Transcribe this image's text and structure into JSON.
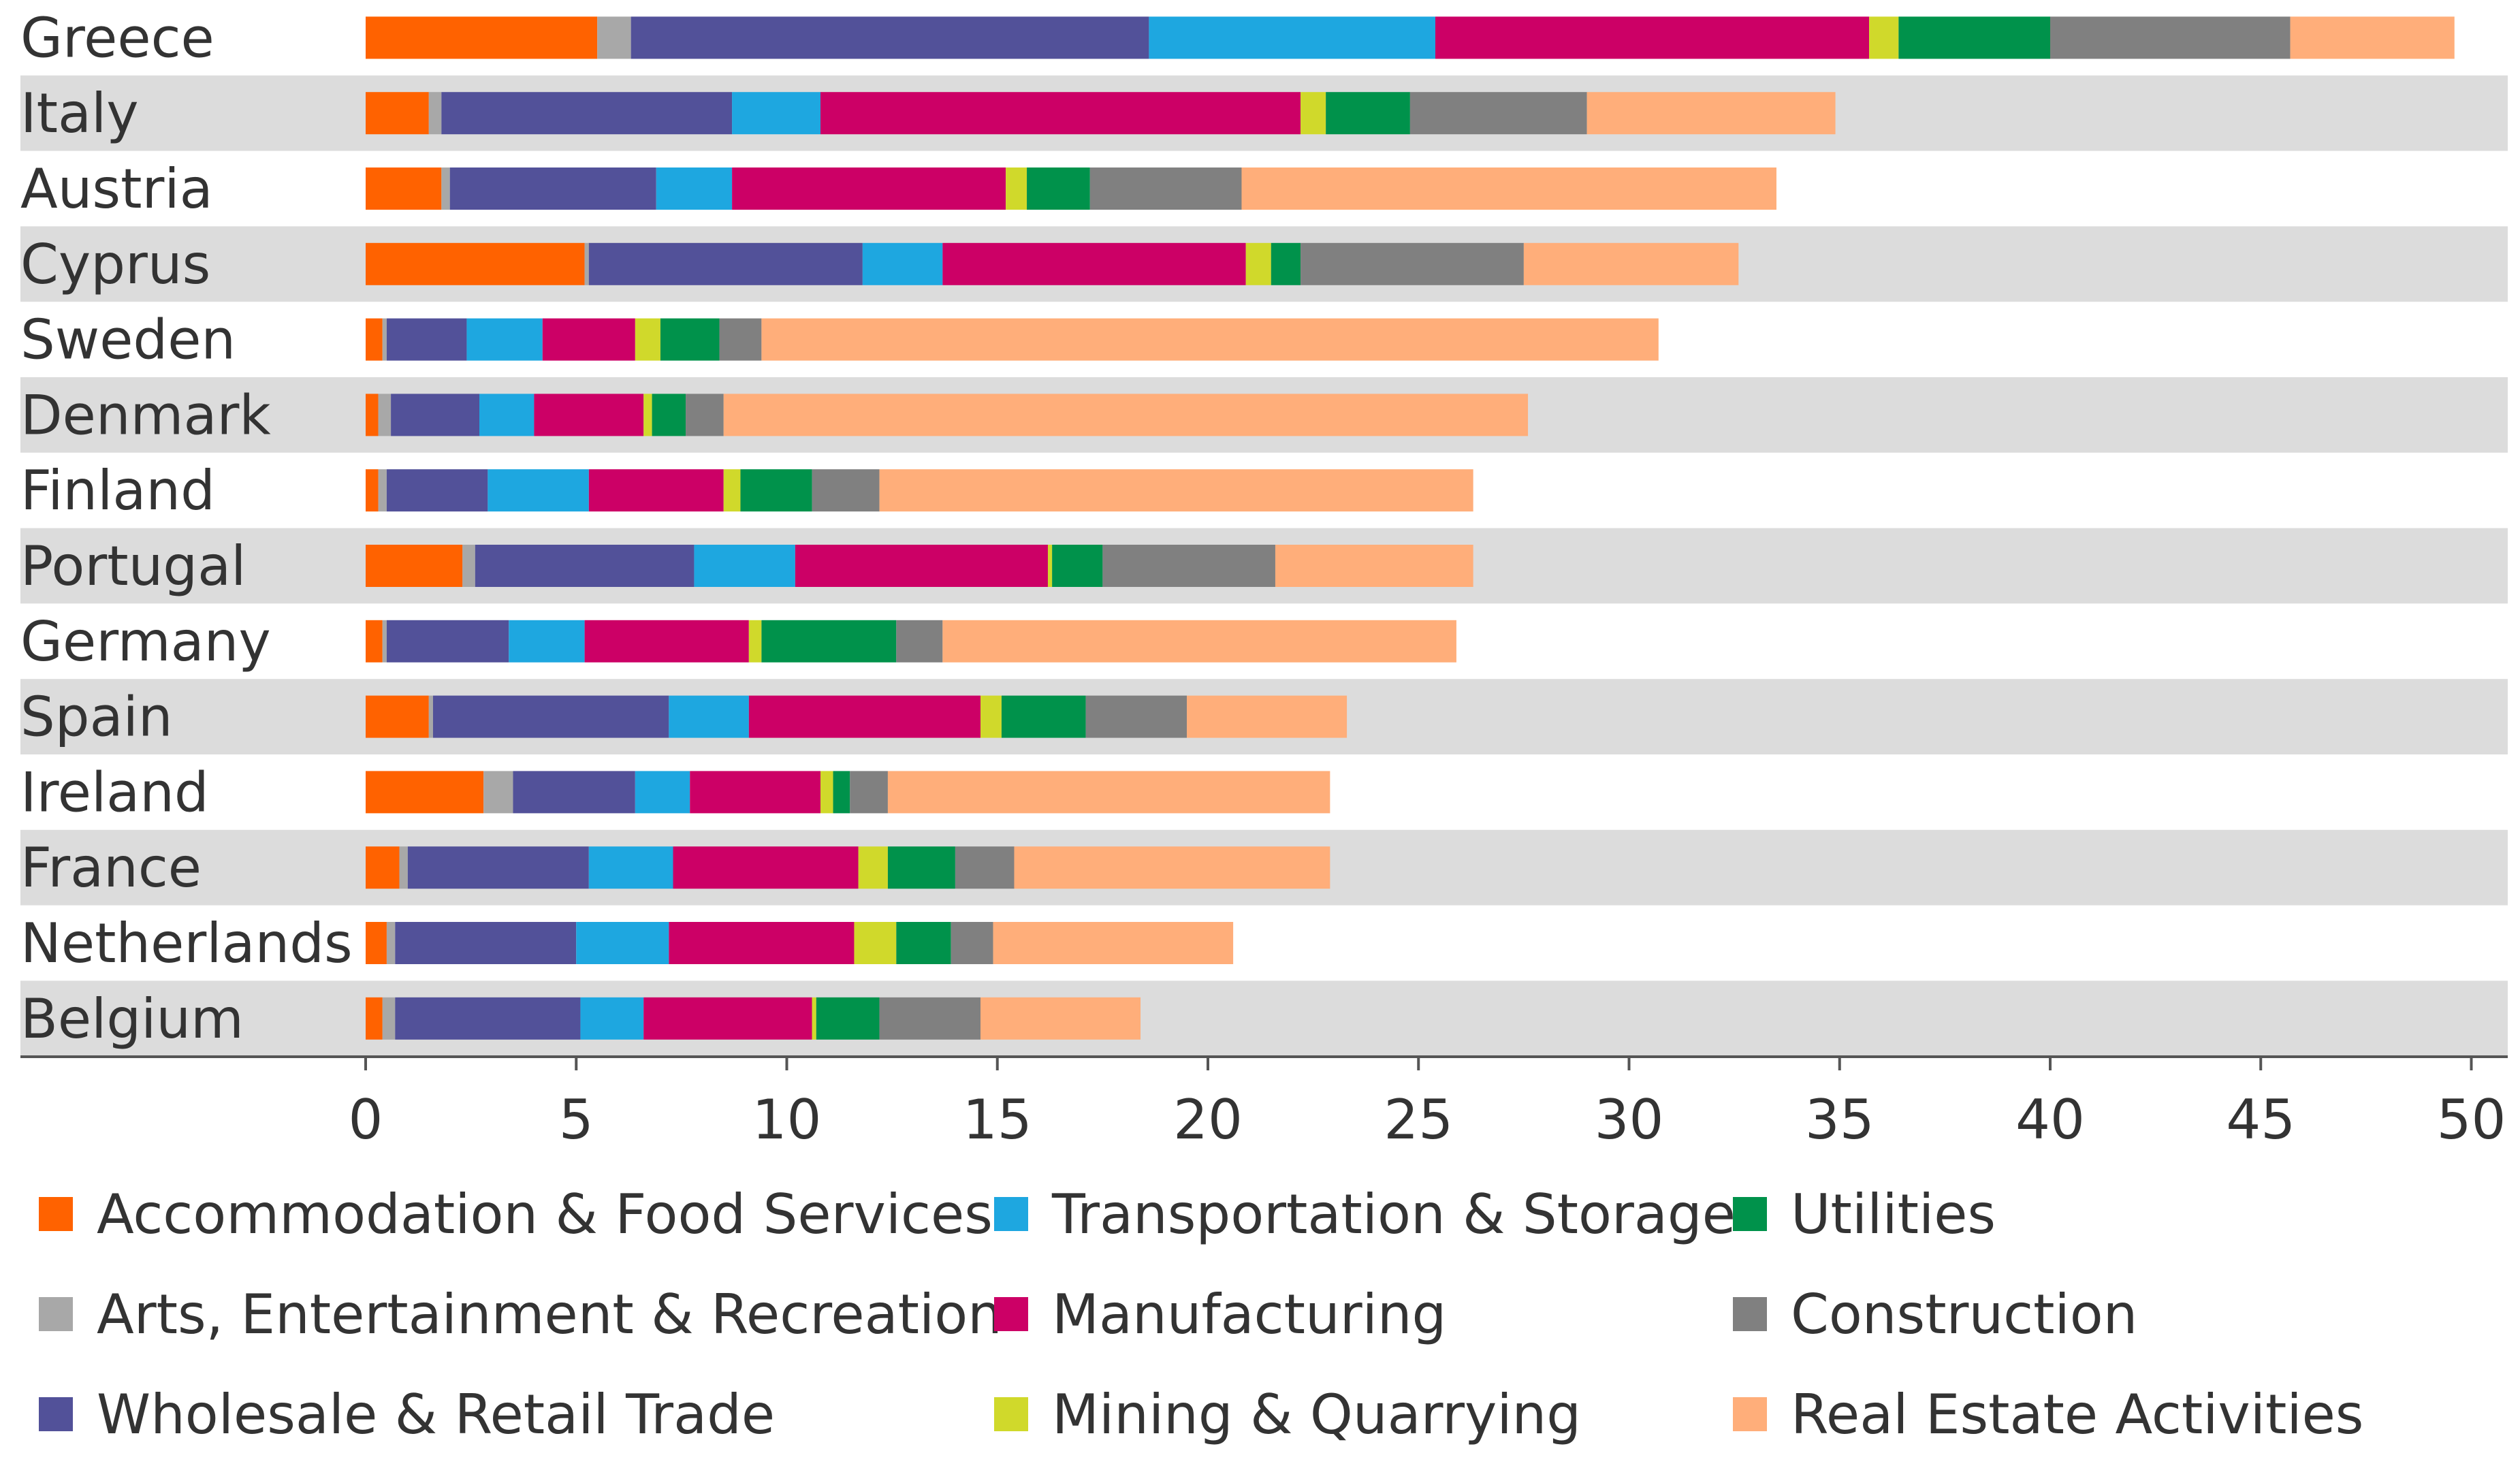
{
  "chart_data": {
    "type": "bar",
    "orientation": "horizontal",
    "stacked": true,
    "title": "",
    "xlabel": "",
    "ylabel": "",
    "xlim": [
      0,
      50
    ],
    "xticks": [
      0,
      5,
      10,
      15,
      20,
      25,
      30,
      35,
      40,
      45,
      50
    ],
    "grid": false,
    "legend_position": "bottom",
    "categories": [
      "Greece",
      "Italy",
      "Austria",
      "Cyprus",
      "Sweden",
      "Denmark",
      "Finland",
      "Portugal",
      "Germany",
      "Spain",
      "Ireland",
      "France",
      "Netherlands",
      "Belgium"
    ],
    "series": [
      {
        "name": "Accommodation & Food Services",
        "color": "#ff6200",
        "values": [
          5.5,
          1.5,
          1.8,
          5.2,
          0.4,
          0.3,
          0.3,
          2.3,
          0.4,
          1.5,
          2.8,
          0.8,
          0.5,
          0.4
        ]
      },
      {
        "name": "Arts, Entertainment & Recreation",
        "color": "#a8a8a8",
        "values": [
          0.8,
          0.3,
          0.2,
          0.1,
          0.1,
          0.3,
          0.2,
          0.3,
          0.1,
          0.1,
          0.7,
          0.2,
          0.2,
          0.3
        ]
      },
      {
        "name": "Wholesale & Retail Trade",
        "color": "#525199",
        "values": [
          12.3,
          6.9,
          4.9,
          6.5,
          1.9,
          2.1,
          2.4,
          5.2,
          2.9,
          5.6,
          2.9,
          4.3,
          4.3,
          4.4
        ]
      },
      {
        "name": "Transportation & Storage",
        "color": "#1ea7e0",
        "values": [
          6.8,
          2.1,
          1.8,
          1.9,
          1.8,
          1.3,
          2.4,
          2.4,
          1.8,
          1.9,
          1.3,
          2.0,
          2.2,
          1.5
        ]
      },
      {
        "name": "Manufacturing",
        "color": "#cc0066",
        "values": [
          10.3,
          11.4,
          6.5,
          7.2,
          2.2,
          2.6,
          3.2,
          6.0,
          3.9,
          5.5,
          3.1,
          4.4,
          4.4,
          4.0
        ]
      },
      {
        "name": "Mining & Quarrying",
        "color": "#d0d92b",
        "values": [
          0.7,
          0.6,
          0.5,
          0.6,
          0.6,
          0.2,
          0.4,
          0.1,
          0.3,
          0.5,
          0.3,
          0.7,
          1.0,
          0.1
        ]
      },
      {
        "name": "Utilities",
        "color": "#00924b",
        "values": [
          3.6,
          2.0,
          1.5,
          0.7,
          1.4,
          0.8,
          1.7,
          1.2,
          3.2,
          2.0,
          0.4,
          1.6,
          1.3,
          1.5
        ]
      },
      {
        "name": "Construction",
        "color": "#808080",
        "values": [
          5.7,
          4.2,
          3.6,
          5.3,
          1.0,
          0.9,
          1.6,
          4.1,
          1.1,
          2.4,
          0.9,
          1.4,
          1.0,
          2.4
        ]
      },
      {
        "name": "Real Estate Activities",
        "color": "#ffae7a",
        "values": [
          3.9,
          5.9,
          12.7,
          5.1,
          21.3,
          19.1,
          14.1,
          4.7,
          12.2,
          3.8,
          10.5,
          7.5,
          5.7,
          3.8
        ]
      }
    ]
  },
  "legend": {
    "entries": [
      "Accommodation & Food Services",
      "Transportation & Storage",
      "Utilities",
      "Arts, Entertainment & Recreation",
      "Manufacturing",
      "Construction",
      "Wholesale & Retail Trade",
      "Mining & Quarrying",
      "Real Estate Activities"
    ]
  }
}
